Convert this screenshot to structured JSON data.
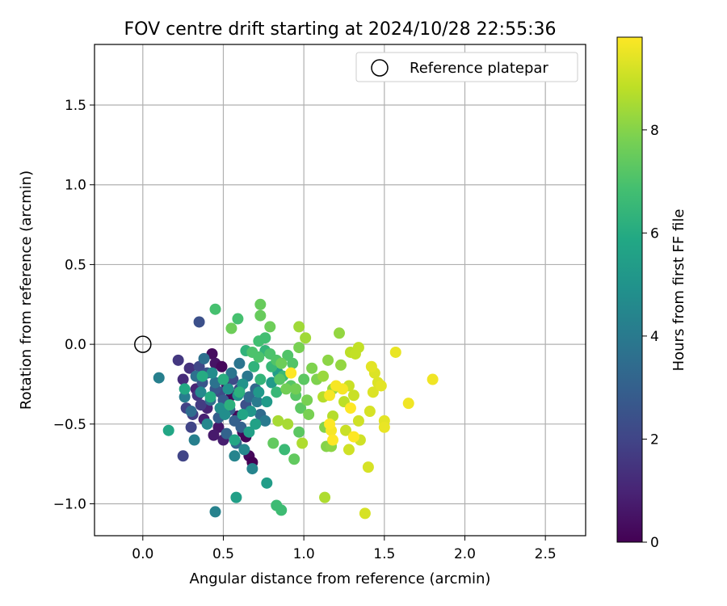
{
  "chart_data": {
    "type": "scatter",
    "title": "FOV centre drift starting at 2024/10/28 22:55:36",
    "xlabel": "Angular distance from reference (arcmin)",
    "ylabel": "Rotation from reference (arcmin)",
    "xlim": [
      -0.3,
      2.75
    ],
    "ylim": [
      -1.2,
      1.88
    ],
    "x_ticks": [
      0.0,
      0.5,
      1.0,
      1.5,
      2.0,
      2.5
    ],
    "y_ticks": [
      -1.0,
      -0.5,
      0.0,
      0.5,
      1.0,
      1.5
    ],
    "x_tick_labels": [
      "0.0",
      "0.5",
      "1.0",
      "1.5",
      "2.0",
      "2.5"
    ],
    "y_tick_labels": [
      "−1.0",
      "−0.5",
      "0.0",
      "0.5",
      "1.0",
      "1.5"
    ],
    "grid": true,
    "legend": {
      "placement": "top-right",
      "entries": [
        {
          "label": "Reference platepar",
          "marker": "open-circle",
          "color": "#000000"
        }
      ]
    },
    "reference_point": {
      "x": 0.0,
      "y": 0.0
    },
    "colorbar": {
      "label": "Hours from first FF file",
      "colormap": "viridis",
      "range": [
        0,
        9.8
      ],
      "ticks": [
        0,
        2,
        4,
        6,
        8
      ],
      "tick_labels": [
        "0",
        "2",
        "4",
        "6",
        "8"
      ]
    },
    "series": [
      {
        "note_columns": [
          "x",
          "y",
          "hours"
        ],
        "points": [
          [
            0.43,
            -0.06,
            0.3
          ],
          [
            0.45,
            -0.12,
            0.5
          ],
          [
            0.49,
            -0.14,
            0.2
          ],
          [
            0.52,
            -0.25,
            0.4
          ],
          [
            0.55,
            -0.32,
            0.1
          ],
          [
            0.59,
            -0.45,
            0.2
          ],
          [
            0.62,
            -0.55,
            0.3
          ],
          [
            0.64,
            -0.58,
            0.1
          ],
          [
            0.66,
            -0.7,
            0.2
          ],
          [
            0.68,
            -0.74,
            0.0
          ],
          [
            0.47,
            -0.52,
            0.6
          ],
          [
            0.5,
            -0.6,
            0.8
          ],
          [
            0.44,
            -0.57,
            0.7
          ],
          [
            0.38,
            -0.47,
            0.9
          ],
          [
            0.4,
            -0.4,
            1.0
          ],
          [
            0.33,
            -0.28,
            1.0
          ],
          [
            0.25,
            -0.22,
            1.2
          ],
          [
            0.29,
            -0.15,
            1.4
          ],
          [
            0.22,
            -0.1,
            1.6
          ],
          [
            0.34,
            -0.32,
            1.5
          ],
          [
            0.36,
            -0.38,
            1.7
          ],
          [
            0.31,
            -0.44,
            1.8
          ],
          [
            0.27,
            -0.4,
            1.9
          ],
          [
            0.3,
            -0.52,
            2.0
          ],
          [
            0.25,
            -0.7,
            2.0
          ],
          [
            0.35,
            -0.14,
            2.1
          ],
          [
            0.56,
            -0.22,
            2.2
          ],
          [
            0.6,
            -0.28,
            2.1
          ],
          [
            0.48,
            -0.3,
            2.2
          ],
          [
            0.64,
            -0.38,
            2.4
          ],
          [
            0.35,
            0.14,
            2.4
          ],
          [
            0.4,
            -0.18,
            2.5
          ],
          [
            0.37,
            -0.24,
            2.6
          ],
          [
            0.45,
            -0.28,
            2.6
          ],
          [
            0.5,
            -0.35,
            2.8
          ],
          [
            0.54,
            -0.41,
            2.9
          ],
          [
            0.47,
            -0.46,
            2.9
          ],
          [
            0.57,
            -0.48,
            3.0
          ],
          [
            0.61,
            -0.52,
            3.0
          ],
          [
            0.52,
            -0.56,
            3.1
          ],
          [
            0.58,
            -0.62,
            3.2
          ],
          [
            0.66,
            -0.33,
            3.3
          ],
          [
            0.7,
            -0.28,
            3.3
          ],
          [
            0.73,
            -0.44,
            3.4
          ],
          [
            0.42,
            -0.35,
            3.5
          ],
          [
            0.3,
            -0.42,
            3.5
          ],
          [
            0.33,
            -0.2,
            3.6
          ],
          [
            0.38,
            -0.09,
            3.6
          ],
          [
            0.45,
            -0.24,
            3.7
          ],
          [
            0.55,
            -0.18,
            3.8
          ],
          [
            0.6,
            -0.12,
            3.8
          ],
          [
            0.65,
            -0.2,
            3.9
          ],
          [
            0.71,
            -0.36,
            4.0
          ],
          [
            0.76,
            -0.48,
            4.0
          ],
          [
            0.26,
            -0.33,
            4.1
          ],
          [
            0.1,
            -0.21,
            4.2
          ],
          [
            0.32,
            -0.6,
            4.2
          ],
          [
            0.45,
            -1.05,
            4.3
          ],
          [
            0.68,
            -0.78,
            4.4
          ],
          [
            0.57,
            -0.7,
            4.4
          ],
          [
            0.63,
            -0.66,
            4.5
          ],
          [
            0.4,
            -0.5,
            4.5
          ],
          [
            0.36,
            -0.3,
            4.6
          ],
          [
            0.43,
            -0.18,
            4.7
          ],
          [
            0.51,
            -0.44,
            4.8
          ],
          [
            0.48,
            -0.4,
            4.8
          ],
          [
            0.53,
            -0.28,
            4.9
          ],
          [
            0.59,
            -0.32,
            5.0
          ],
          [
            0.62,
            -0.25,
            5.0
          ],
          [
            0.67,
            -0.42,
            5.1
          ],
          [
            0.72,
            -0.3,
            5.2
          ],
          [
            0.77,
            -0.36,
            5.3
          ],
          [
            0.8,
            -0.24,
            5.3
          ],
          [
            0.84,
            -0.18,
            5.4
          ],
          [
            0.77,
            -0.87,
            5.4
          ],
          [
            0.58,
            -0.96,
            5.5
          ],
          [
            0.66,
            -0.55,
            5.5
          ],
          [
            0.7,
            -0.5,
            5.6
          ],
          [
            0.62,
            -0.44,
            5.7
          ],
          [
            0.57,
            -0.6,
            5.8
          ],
          [
            0.16,
            -0.54,
            5.8
          ],
          [
            0.26,
            -0.28,
            5.9
          ],
          [
            0.37,
            -0.2,
            6.0
          ],
          [
            0.42,
            -0.33,
            6.0
          ],
          [
            0.5,
            -0.22,
            6.1
          ],
          [
            0.54,
            -0.38,
            6.2
          ],
          [
            0.6,
            -0.3,
            6.2
          ],
          [
            0.64,
            -0.04,
            6.3
          ],
          [
            0.69,
            -0.14,
            6.3
          ],
          [
            0.73,
            -0.22,
            6.4
          ],
          [
            0.76,
            -0.04,
            6.4
          ],
          [
            0.8,
            -0.14,
            6.5
          ],
          [
            0.83,
            -0.3,
            6.5
          ],
          [
            0.87,
            -0.2,
            6.6
          ],
          [
            0.88,
            -0.66,
            6.6
          ],
          [
            0.83,
            -1.01,
            6.7
          ],
          [
            0.86,
            -1.04,
            6.7
          ],
          [
            0.72,
            0.02,
            6.8
          ],
          [
            0.76,
            0.04,
            6.8
          ],
          [
            0.45,
            0.22,
            6.9
          ],
          [
            0.59,
            0.16,
            6.9
          ],
          [
            0.68,
            -0.05,
            7.0
          ],
          [
            0.72,
            -0.08,
            7.0
          ],
          [
            0.79,
            -0.06,
            7.0
          ],
          [
            0.83,
            -0.1,
            7.1
          ],
          [
            0.9,
            -0.07,
            7.1
          ],
          [
            0.93,
            -0.12,
            7.1
          ],
          [
            0.85,
            -0.22,
            7.2
          ],
          [
            0.92,
            -0.26,
            7.2
          ],
          [
            0.95,
            -0.32,
            7.2
          ],
          [
            1.0,
            -0.22,
            7.3
          ],
          [
            0.98,
            -0.4,
            7.3
          ],
          [
            0.97,
            -0.55,
            7.3
          ],
          [
            0.94,
            -0.72,
            7.4
          ],
          [
            0.81,
            -0.62,
            7.4
          ],
          [
            0.73,
            0.25,
            7.5
          ],
          [
            0.73,
            0.18,
            7.5
          ],
          [
            0.55,
            0.1,
            7.6
          ],
          [
            0.79,
            0.11,
            7.6
          ],
          [
            0.86,
            -0.12,
            7.6
          ],
          [
            0.89,
            -0.28,
            7.7
          ],
          [
            0.95,
            -0.28,
            7.7
          ],
          [
            1.02,
            -0.35,
            7.8
          ],
          [
            1.03,
            -0.44,
            7.8
          ],
          [
            0.97,
            -0.02,
            7.8
          ],
          [
            1.05,
            -0.15,
            7.9
          ],
          [
            1.08,
            -0.22,
            7.9
          ],
          [
            1.13,
            -0.52,
            8.0
          ],
          [
            1.14,
            -0.64,
            8.0
          ],
          [
            1.17,
            -0.64,
            8.1
          ],
          [
            1.15,
            -0.1,
            8.1
          ],
          [
            1.22,
            0.07,
            8.2
          ],
          [
            1.23,
            -0.13,
            8.2
          ],
          [
            1.12,
            -0.2,
            8.3
          ],
          [
            1.18,
            -0.28,
            8.3
          ],
          [
            0.97,
            0.11,
            8.4
          ],
          [
            1.01,
            0.04,
            8.4
          ],
          [
            0.84,
            -0.48,
            8.5
          ],
          [
            0.9,
            -0.5,
            8.5
          ],
          [
            0.99,
            -0.62,
            8.6
          ],
          [
            1.13,
            -0.96,
            8.6
          ],
          [
            1.12,
            -0.33,
            8.7
          ],
          [
            1.18,
            -0.45,
            8.7
          ],
          [
            1.25,
            -0.36,
            8.8
          ],
          [
            1.29,
            -0.05,
            8.8
          ],
          [
            1.32,
            -0.06,
            8.9
          ],
          [
            1.34,
            -0.02,
            8.9
          ],
          [
            1.28,
            -0.26,
            9.0
          ],
          [
            1.31,
            -0.32,
            9.0
          ],
          [
            1.26,
            -0.54,
            9.0
          ],
          [
            1.28,
            -0.66,
            9.1
          ],
          [
            1.34,
            -0.48,
            9.1
          ],
          [
            1.35,
            -0.6,
            9.1
          ],
          [
            1.38,
            -1.06,
            9.2
          ],
          [
            1.4,
            -0.77,
            9.2
          ],
          [
            1.41,
            -0.42,
            9.2
          ],
          [
            1.43,
            -0.3,
            9.3
          ],
          [
            1.44,
            -0.18,
            9.3
          ],
          [
            1.46,
            -0.24,
            9.3
          ],
          [
            1.48,
            -0.26,
            9.4
          ],
          [
            1.42,
            -0.14,
            9.4
          ],
          [
            1.5,
            -0.48,
            9.4
          ],
          [
            1.5,
            -0.52,
            9.5
          ],
          [
            1.57,
            -0.05,
            9.5
          ],
          [
            1.65,
            -0.37,
            9.6
          ],
          [
            1.8,
            -0.22,
            9.6
          ],
          [
            1.24,
            -0.28,
            9.7
          ],
          [
            1.2,
            -0.26,
            9.7
          ],
          [
            1.16,
            -0.32,
            9.7
          ],
          [
            1.17,
            -0.54,
            9.7
          ],
          [
            1.29,
            -0.4,
            9.8
          ],
          [
            1.31,
            -0.58,
            9.8
          ],
          [
            1.18,
            -0.6,
            9.8
          ],
          [
            1.16,
            -0.5,
            9.8
          ],
          [
            0.92,
            -0.18,
            9.8
          ]
        ]
      }
    ]
  }
}
